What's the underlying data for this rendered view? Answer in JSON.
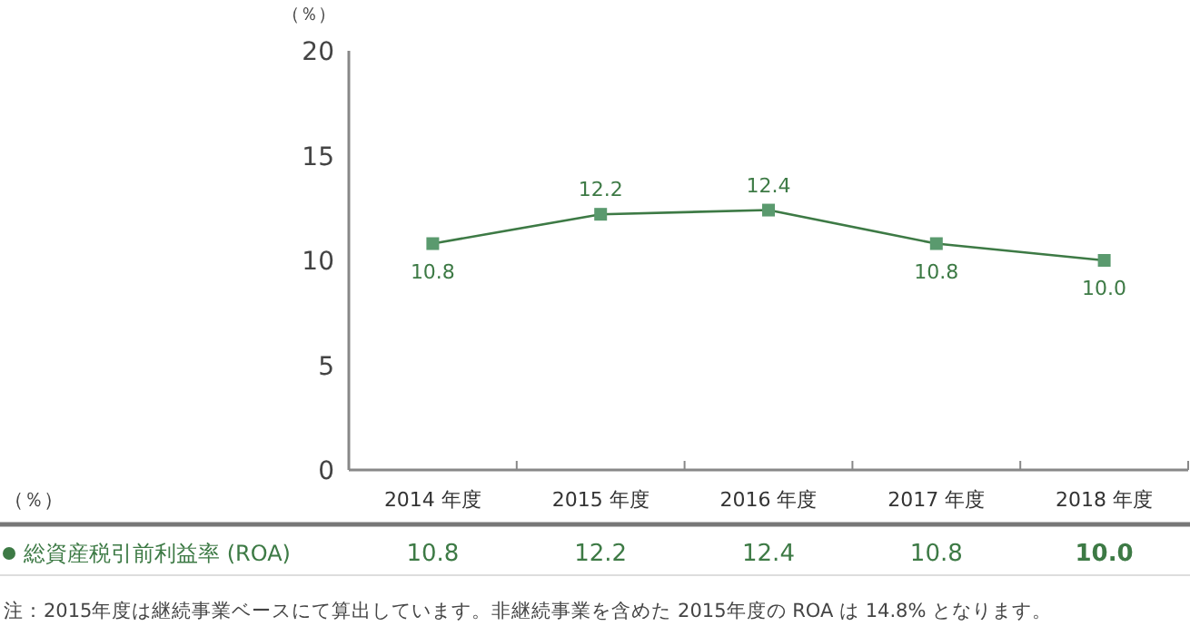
{
  "chart_data": {
    "type": "line",
    "ylabel": "（％）",
    "categories": [
      "2014 年度",
      "2015 年度",
      "2016 年度",
      "2017 年度",
      "2018 年度"
    ],
    "series": [
      {
        "name": "総資産税引前利益率 (ROA)",
        "color": "#3d7a45",
        "values": [
          10.8,
          12.2,
          12.4,
          10.8,
          10.0
        ],
        "value_labels": [
          "10.8",
          "12.2",
          "12.4",
          "10.8",
          "10.0"
        ]
      }
    ],
    "ylim": [
      0,
      20
    ],
    "yticks": [
      0,
      5,
      10,
      15,
      20
    ],
    "marker": "square",
    "line_style": "solid",
    "data_labels": true,
    "legend": "bottom",
    "grid": false,
    "annotations": [
      "（％）",
      "注：2015年度は継続事業ベースにて算出しています。非継続事業を含めた 2015年度の ROA は 14.8% となります。"
    ]
  }
}
